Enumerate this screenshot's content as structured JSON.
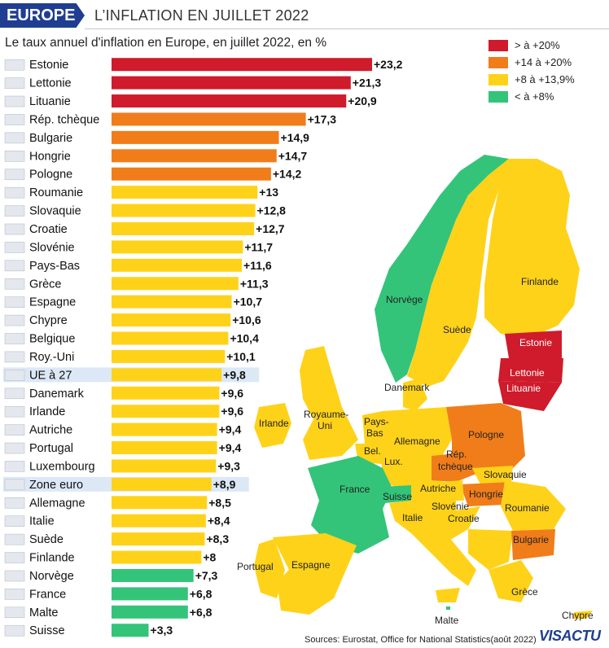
{
  "header": {
    "tag": "EUROPE",
    "title": "L’INFLATION EN JUILLET 2022"
  },
  "subtitle": "Le taux annuel d'inflation en Europe, en juillet 2022, en %",
  "legend": [
    {
      "label": "> à +20%",
      "color": "#cf1b2b"
    },
    {
      "label": "+14 à +20%",
      "color": "#f07d1a"
    },
    {
      "label": "+8 à +13,9%",
      "color": "#ffd21a"
    },
    {
      "label": "< à +8%",
      "color": "#33c47a"
    }
  ],
  "map_labels": {
    "finlande": "Finlande",
    "norvege": "Norvège",
    "suede": "Suède",
    "estonie": "Estonie",
    "lettonie": "Lettonie",
    "lituanie": "Lituanie",
    "danemark": "Danemark",
    "royaume_uni_1": "Royaume-",
    "royaume_uni_2": "Uni",
    "irlande": "Irlande",
    "pays_bas_1": "Pays-",
    "pays_bas_2": "Bas",
    "pologne": "Pologne",
    "allemagne": "Allemagne",
    "belgique": "Bel.",
    "luxembourg": "Lux.",
    "rep_tcheque_1": "Rép.",
    "rep_tcheque_2": "tchèque",
    "slovaquie": "Slovaquie",
    "france": "France",
    "suisse": "Suisse",
    "autriche": "Autriche",
    "hongrie": "Hongrie",
    "slovenie": "Slovénie",
    "croatie": "Croatie",
    "roumanie": "Roumanie",
    "italie": "Italie",
    "bulgarie": "Bulgarie",
    "portugal": "Portugal",
    "espagne": "Espagne",
    "grece": "Grèce",
    "malte": "Malte",
    "chypre": "Chypre"
  },
  "source": "Sources: Eurostat, Office for National Statistics(août 2022)",
  "logo": "VISACTU",
  "chart_data": {
    "type": "bar",
    "orientation": "horizontal",
    "title": "Le taux annuel d'inflation en Europe, en juillet 2022, en %",
    "categories": [
      "Estonie",
      "Lettonie",
      "Lituanie",
      "Rép. tchèque",
      "Bulgarie",
      "Hongrie",
      "Pologne",
      "Roumanie",
      "Slovaquie",
      "Croatie",
      "Slovénie",
      "Pays-Bas",
      "Grèce",
      "Espagne",
      "Chypre",
      "Belgique",
      "Roy.-Uni",
      "UE à 27",
      "Danemark",
      "Irlande",
      "Autriche",
      "Portugal",
      "Luxembourg",
      "Zone euro",
      "Allemagne",
      "Italie",
      "Suède",
      "Finlande",
      "Norvège",
      "France",
      "Malte",
      "Suisse"
    ],
    "values": [
      23.2,
      21.3,
      20.9,
      17.3,
      14.9,
      14.7,
      14.2,
      13,
      12.8,
      12.7,
      11.7,
      11.6,
      11.3,
      10.7,
      10.6,
      10.4,
      10.1,
      9.8,
      9.6,
      9.6,
      9.4,
      9.4,
      9.3,
      8.9,
      8.5,
      8.4,
      8.3,
      8,
      7.3,
      6.8,
      6.8,
      3.3
    ],
    "value_labels": [
      "+23,2",
      "+21,3",
      "+20,9",
      "+17,3",
      "+14,9",
      "+14,7",
      "+14,2",
      "+13",
      "+12,8",
      "+12,7",
      "+11,7",
      "+11,6",
      "+11,3",
      "+10,7",
      "+10,6",
      "+10,4",
      "+10,1",
      "+9,8",
      "+9,6",
      "+9,6",
      "+9,4",
      "+9,4",
      "+9,3",
      "+8,9",
      "+8,5",
      "+8,4",
      "+8,3",
      "+8",
      "+7,3",
      "+6,8",
      "+6,8",
      "+3,3"
    ],
    "highlighted": [
      "UE à 27",
      "Zone euro"
    ],
    "color_classes": [
      "red",
      "red",
      "red",
      "orange",
      "orange",
      "orange",
      "orange",
      "yellow",
      "yellow",
      "yellow",
      "yellow",
      "yellow",
      "yellow",
      "yellow",
      "yellow",
      "yellow",
      "yellow",
      "yellow",
      "yellow",
      "yellow",
      "yellow",
      "yellow",
      "yellow",
      "yellow",
      "yellow",
      "yellow",
      "yellow",
      "yellow",
      "green",
      "green",
      "green",
      "green"
    ],
    "colors": {
      "red": "#cf1b2b",
      "orange": "#f07d1a",
      "yellow": "#ffd21a",
      "green": "#33c47a"
    },
    "highlight_color": "#dce8f6",
    "xlim": [
      0,
      23.2
    ],
    "grid": false,
    "legend_position": "top-right"
  }
}
